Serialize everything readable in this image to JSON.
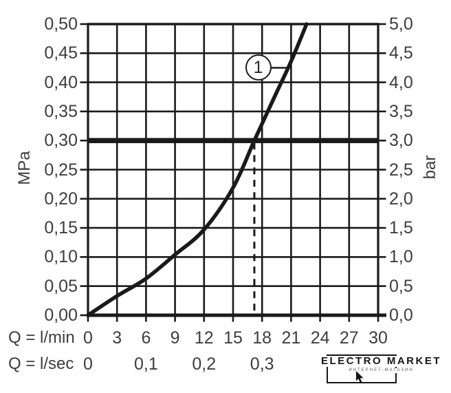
{
  "chart_data": {
    "type": "line",
    "title": "",
    "grid": true,
    "legend_position": "none",
    "colors": {
      "line": "#1a1a1a",
      "text": "#3d3d3d",
      "background": "#ffffff"
    },
    "y_axis_left": {
      "label": "MPa",
      "range": [
        0,
        0.5
      ],
      "ticks": [
        {
          "v": 0.5,
          "t": "0,50"
        },
        {
          "v": 0.45,
          "t": "0,45"
        },
        {
          "v": 0.4,
          "t": "0,40"
        },
        {
          "v": 0.35,
          "t": "0,35"
        },
        {
          "v": 0.3,
          "t": "0,30"
        },
        {
          "v": 0.25,
          "t": "0,25"
        },
        {
          "v": 0.2,
          "t": "0,20"
        },
        {
          "v": 0.15,
          "t": "0,15"
        },
        {
          "v": 0.1,
          "t": "0,10"
        },
        {
          "v": 0.05,
          "t": "0,05"
        },
        {
          "v": 0.0,
          "t": "0,00"
        }
      ]
    },
    "y_axis_right": {
      "label": "bar",
      "range": [
        0,
        5
      ],
      "ticks": [
        {
          "v": 5.0,
          "t": "5,0"
        },
        {
          "v": 4.5,
          "t": "4,5"
        },
        {
          "v": 4.0,
          "t": "4,0"
        },
        {
          "v": 3.5,
          "t": "3,5"
        },
        {
          "v": 3.0,
          "t": "3,0"
        },
        {
          "v": 2.5,
          "t": "2,5"
        },
        {
          "v": 2.0,
          "t": "2,0"
        },
        {
          "v": 1.5,
          "t": "1,5"
        },
        {
          "v": 1.0,
          "t": "1,0"
        },
        {
          "v": 0.5,
          "t": "0,5"
        },
        {
          "v": 0.0,
          "t": "0,0"
        }
      ]
    },
    "x_axis": {
      "label_min": "Q = l/min",
      "label_sec": "Q = l/sec",
      "range_lmin": [
        0,
        30
      ],
      "grid_step_lmin": 3,
      "ticks_lmin": [
        {
          "v": 0,
          "t": "0"
        },
        {
          "v": 3,
          "t": "3"
        },
        {
          "v": 6,
          "t": "6"
        },
        {
          "v": 9,
          "t": "9"
        },
        {
          "v": 12,
          "t": "12"
        },
        {
          "v": 15,
          "t": "15"
        },
        {
          "v": 18,
          "t": "18"
        },
        {
          "v": 21,
          "t": "21"
        },
        {
          "v": 24,
          "t": "24"
        },
        {
          "v": 27,
          "t": "27"
        },
        {
          "v": 30,
          "t": "30"
        }
      ],
      "ticks_lsec": [
        {
          "v": 0,
          "t": "0"
        },
        {
          "v": 6,
          "t": "0,1"
        },
        {
          "v": 12,
          "t": "0,2"
        },
        {
          "v": 18,
          "t": "0,3"
        }
      ]
    },
    "series": [
      {
        "name": "1",
        "points_lmin_mpa": [
          [
            0,
            0.0
          ],
          [
            3,
            0.033
          ],
          [
            6,
            0.063
          ],
          [
            9,
            0.104
          ],
          [
            12,
            0.147
          ],
          [
            15,
            0.219
          ],
          [
            17.2,
            0.3
          ],
          [
            19.2,
            0.372
          ],
          [
            21,
            0.436
          ],
          [
            22.6,
            0.5
          ]
        ]
      }
    ],
    "reference_line_mpa": 0.3,
    "guide_line_lmin": 17.2,
    "callout": {
      "label": "1",
      "at_lmin": 17.6,
      "at_mpa": 0.425,
      "leader_to_lmin": 20.7
    }
  },
  "watermark": {
    "brand": "ELECTRO MARKET",
    "subtitle": "ИНТЕРНЕТ-МАГАЗИН"
  }
}
